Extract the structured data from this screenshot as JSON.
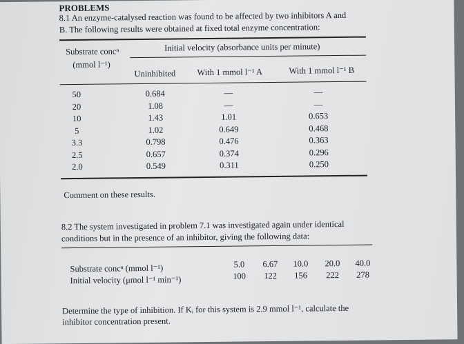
{
  "header": {
    "title": "PROBLEMS"
  },
  "problem1": {
    "lines": [
      "8.1 An enzyme-catalysed reaction was found to be affected by two inhibitors A and",
      "B. The following results were obtained at fixed total enzyme concentration:"
    ],
    "table": {
      "header": [
        "Substrate concⁿ",
        "(mmol l⁻¹)"
      ],
      "group": "Initial velocity (absorbance units per minute)",
      "columns": [
        "Uninhibited",
        "With 1 mmol l⁻¹ A",
        "With 1 mmol l⁻¹ B"
      ],
      "rows": [
        [
          "50",
          "0.684",
          "—",
          "—"
        ],
        [
          "20",
          "1.08",
          "—",
          "—"
        ],
        [
          "10",
          "1.43",
          "1.01",
          "0.653"
        ],
        [
          "5",
          "1.02",
          "0.649",
          "0.468"
        ],
        [
          "3.3",
          "0.798",
          "0.476",
          "0.363"
        ],
        [
          "2.5",
          "0.657",
          "0.374",
          "0.296"
        ],
        [
          "2.0",
          "0.549",
          "0.311",
          "0.250"
        ]
      ]
    },
    "comment": "Comment on these results."
  },
  "problem2": {
    "lines": [
      "8.2 The system investigated in problem 7.1 was investigated again under identical",
      "conditions but in the presence of an inhibitor, giving the following data:"
    ],
    "table": {
      "rows": [
        {
          "label": "Substrate concⁿ (mmol l⁻¹)",
          "values": [
            "5.0",
            "6.67",
            "10.0",
            "20.0",
            "40.0"
          ]
        },
        {
          "label": "Initial velocity (μmol l⁻¹ min⁻¹)",
          "values": [
            "100",
            "122",
            "156",
            "222",
            "278"
          ]
        }
      ]
    },
    "question": [
      "Determine the type of inhibition. If Kᵢ for this system is 2.9 mmol l⁻¹, calculate the",
      "inhibitor concentration present."
    ]
  }
}
